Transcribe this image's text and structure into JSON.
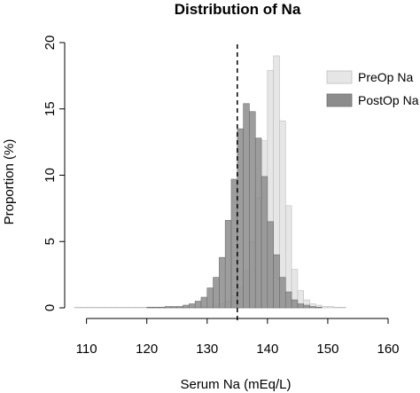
{
  "chart_data": {
    "type": "bar",
    "title": "Distribution of Na",
    "xlabel": "Serum Na (mEq/L)",
    "ylabel": "Proportion (%)",
    "xlim": [
      108,
      160
    ],
    "ylim": [
      0,
      20
    ],
    "x_ticks": [
      110,
      120,
      130,
      140,
      150,
      160
    ],
    "y_ticks": [
      0,
      5,
      10,
      15,
      20
    ],
    "bin_width": 1,
    "legend_position": "top-right",
    "reference_line": {
      "x": 135,
      "style": "dashed"
    },
    "series": [
      {
        "name": "PreOp Na",
        "color": "#e6e6e6",
        "stroke": "#bdbdbd",
        "bins": [
          [
            108,
            0.05
          ],
          [
            109,
            0.05
          ],
          [
            110,
            0.05
          ],
          [
            111,
            0.05
          ],
          [
            112,
            0.05
          ],
          [
            113,
            0.05
          ],
          [
            114,
            0.05
          ],
          [
            115,
            0.05
          ],
          [
            116,
            0.05
          ],
          [
            117,
            0.05
          ],
          [
            118,
            0.05
          ],
          [
            119,
            0.05
          ],
          [
            120,
            0.05
          ],
          [
            121,
            0.05
          ],
          [
            122,
            0.05
          ],
          [
            123,
            0.05
          ],
          [
            124,
            0.05
          ],
          [
            125,
            0.05
          ],
          [
            126,
            0.05
          ],
          [
            127,
            0.05
          ],
          [
            128,
            0.05
          ],
          [
            129,
            0.1
          ],
          [
            130,
            0.1
          ],
          [
            131,
            0.2
          ],
          [
            132,
            0.3
          ],
          [
            133,
            0.5
          ],
          [
            134,
            0.9
          ],
          [
            135,
            1.5
          ],
          [
            136,
            2.8
          ],
          [
            137,
            5.0
          ],
          [
            138,
            8.3
          ],
          [
            139,
            12.6
          ],
          [
            140,
            17.9
          ],
          [
            141,
            19.0
          ],
          [
            142,
            14.1
          ],
          [
            143,
            7.7
          ],
          [
            144,
            2.9
          ],
          [
            145,
            1.3
          ],
          [
            146,
            0.6
          ],
          [
            147,
            0.3
          ],
          [
            148,
            0.2
          ],
          [
            149,
            0.1
          ],
          [
            150,
            0.1
          ],
          [
            151,
            0.05
          ],
          [
            152,
            0.05
          ]
        ]
      },
      {
        "name": "PostOp Na",
        "color": "#8c8c8c",
        "stroke": "#6e6e6e",
        "bins": [
          [
            120,
            0.05
          ],
          [
            121,
            0.05
          ],
          [
            122,
            0.05
          ],
          [
            123,
            0.1
          ],
          [
            124,
            0.1
          ],
          [
            125,
            0.1
          ],
          [
            126,
            0.2
          ],
          [
            127,
            0.3
          ],
          [
            128,
            0.5
          ],
          [
            129,
            0.8
          ],
          [
            130,
            1.5
          ],
          [
            131,
            2.3
          ],
          [
            132,
            3.8
          ],
          [
            133,
            6.6
          ],
          [
            134,
            9.7
          ],
          [
            135,
            13.5
          ],
          [
            136,
            15.4
          ],
          [
            137,
            14.8
          ],
          [
            138,
            12.8
          ],
          [
            139,
            9.9
          ],
          [
            140,
            6.5
          ],
          [
            141,
            4.0
          ],
          [
            142,
            2.3
          ],
          [
            143,
            1.2
          ],
          [
            144,
            0.6
          ],
          [
            145,
            0.3
          ],
          [
            146,
            0.2
          ],
          [
            147,
            0.1
          ],
          [
            148,
            0.05
          ]
        ]
      }
    ]
  }
}
